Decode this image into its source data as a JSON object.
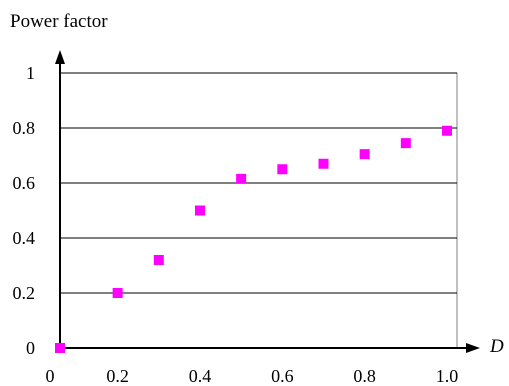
{
  "chart_data": {
    "type": "scatter",
    "title": "",
    "xlabel": "D",
    "ylabel": "Power factor",
    "xlim": [
      0.06,
      1.0
    ],
    "ylim": [
      0,
      1
    ],
    "x_ticks": [
      "0",
      "0.2",
      "0.4",
      "0.6",
      "0.8",
      "1.0"
    ],
    "y_ticks": [
      "0",
      "0.2",
      "0.4",
      "0.6",
      "0.8",
      "1"
    ],
    "grid": "horizontal",
    "legend": "none",
    "marker": "square",
    "marker_color": "#ff00ff",
    "series": [
      {
        "x": [
          0.06,
          0.2,
          0.3,
          0.4,
          0.5,
          0.6,
          0.7,
          0.8,
          0.9,
          1.0
        ],
        "y": [
          0.0,
          0.2,
          0.32,
          0.5,
          0.615,
          0.65,
          0.67,
          0.705,
          0.745,
          0.79
        ]
      }
    ]
  }
}
